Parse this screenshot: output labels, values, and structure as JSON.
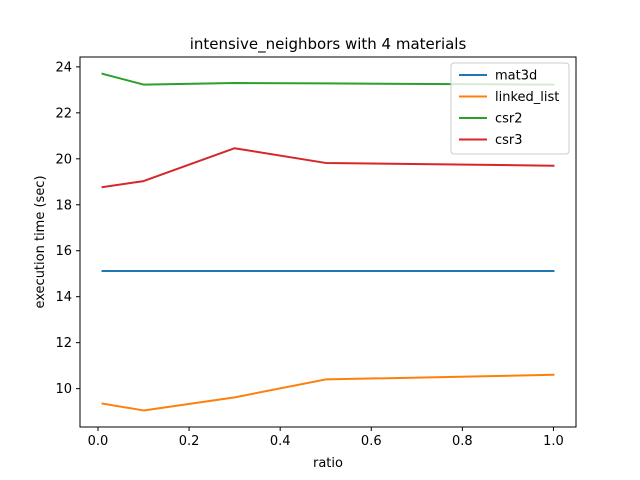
{
  "chart_data": {
    "type": "line",
    "title": "intensive_neighbors with 4 materials",
    "xlabel": "ratio",
    "ylabel": "execution time (sec)",
    "x": [
      0.01,
      0.1,
      0.3,
      0.5,
      1.0
    ],
    "xlim": [
      -0.0395,
      1.0495
    ],
    "ylim": [
      8.33,
      24.43
    ],
    "xticks": [
      0.0,
      0.2,
      0.4,
      0.6,
      0.8,
      1.0
    ],
    "xtick_labels": [
      "0.0",
      "0.2",
      "0.4",
      "0.6",
      "0.8",
      "1.0"
    ],
    "yticks": [
      10,
      12,
      14,
      16,
      18,
      20,
      22,
      24
    ],
    "ytick_labels": [
      "10",
      "12",
      "14",
      "16",
      "18",
      "20",
      "22",
      "24"
    ],
    "grid": false,
    "legend_position": "top-right",
    "series": [
      {
        "name": "mat3d",
        "color": "#1f77b4",
        "values": [
          15.12,
          15.12,
          15.12,
          15.12,
          15.12
        ]
      },
      {
        "name": "linked_list",
        "color": "#ff7f0e",
        "values": [
          9.35,
          9.05,
          9.62,
          10.4,
          10.6
        ]
      },
      {
        "name": "csr2",
        "color": "#2ca02c",
        "values": [
          23.7,
          23.23,
          23.3,
          23.28,
          23.23
        ]
      },
      {
        "name": "csr3",
        "color": "#d62728",
        "values": [
          18.77,
          19.03,
          20.46,
          19.82,
          19.7
        ]
      }
    ]
  }
}
